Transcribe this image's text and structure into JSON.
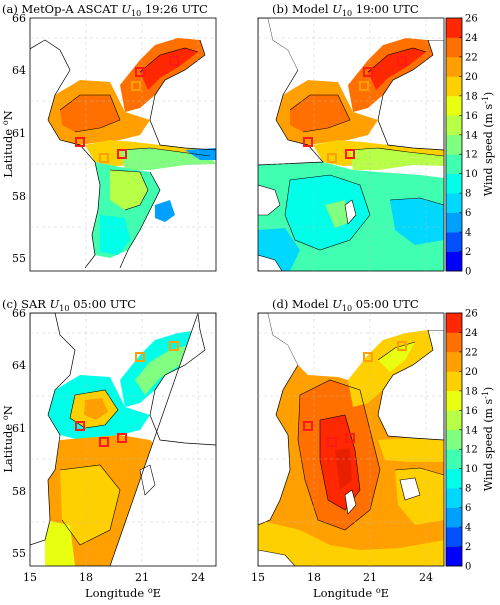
{
  "panels": [
    {
      "title": "(a) MetOp-A ASCAT U10 19:26 UTC",
      "title_prefix": "(a) MetOp-A ASCAT ",
      "var": "U",
      "sub": "10",
      "time": " 19:26 UTC"
    },
    {
      "title": "(b) Model U10 19:00 UTC",
      "title_prefix": "(b) Model ",
      "var": "U",
      "sub": "10",
      "time": " 19:00 UTC"
    },
    {
      "title": "(c) SAR U10 05:00 UTC",
      "title_prefix": "(c) SAR ",
      "var": "U",
      "sub": "10",
      "time": " 05:00 UTC"
    },
    {
      "title": "(d) Model U10 05:00 UTC",
      "title_prefix": "(d) Model ",
      "var": "U",
      "sub": "10",
      "time": " 05:00 UTC"
    }
  ],
  "axes": {
    "ylabel": "Latitude",
    "ylabel_unit": "N",
    "xlabel": "Longitude",
    "xlabel_unit": "E",
    "deg": "o",
    "lat_ticks": [
      "55",
      "58",
      "61",
      "64",
      "66"
    ],
    "lon_ticks": [
      "15",
      "18",
      "21",
      "24"
    ],
    "lat_range": [
      54,
      66
    ],
    "lon_range": [
      15,
      25
    ]
  },
  "colorbar": {
    "label": "Wind speed (m s",
    "label_exp": "-1",
    "label_close": ")",
    "ticks": [
      "26",
      "24",
      "22",
      "20",
      "18",
      "16",
      "14",
      "12",
      "10",
      "8",
      "6",
      "4",
      "2",
      "0"
    ],
    "range": [
      0,
      26
    ],
    "colors": [
      "#0000ff",
      "#0050ff",
      "#00a0ff",
      "#00d8ff",
      "#00ffe8",
      "#40ffb0",
      "#80ff80",
      "#b8ff48",
      "#e8ff10",
      "#ffd000",
      "#ffa000",
      "#ff7000",
      "#ff2800"
    ]
  },
  "colors": {
    "land": "#ffffff",
    "sea_low": "#7fe0d0",
    "sea_mid": "#ffd000",
    "sea_high": "#ff7000",
    "marker_red": "#ff1a1a",
    "marker_orange": "#ffa000"
  }
}
